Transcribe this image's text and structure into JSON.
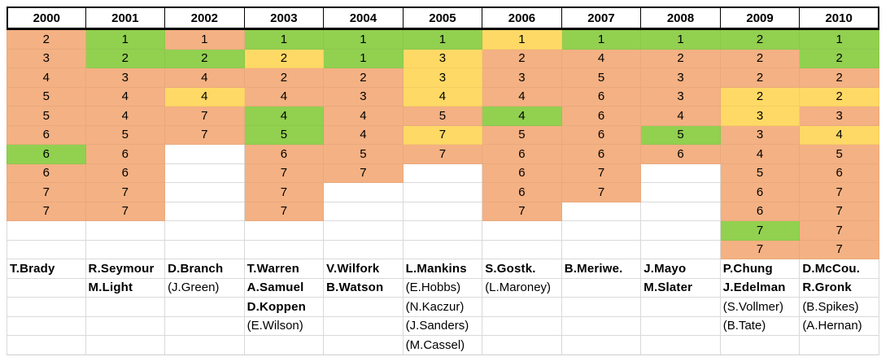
{
  "chart_data": {
    "type": "table",
    "title": "",
    "years": [
      "2000",
      "2001",
      "2002",
      "2003",
      "2004",
      "2005",
      "2006",
      "2007",
      "2008",
      "2009",
      "2010"
    ],
    "num_pick_rows": 12,
    "num_name_rows": 5,
    "colors": {
      "orange": "#F4B183",
      "green": "#92D050",
      "yellow": "#FFD966",
      "gridline": "#d9d9d9",
      "header_border": "#000000"
    },
    "color_codes": {
      "o": "orange",
      "g": "green",
      "y": "yellow"
    },
    "columns": [
      {
        "year": "2000",
        "picks": [
          [
            "2",
            "o"
          ],
          [
            "3",
            "o"
          ],
          [
            "4",
            "o"
          ],
          [
            "5",
            "o"
          ],
          [
            "5",
            "o"
          ],
          [
            "6",
            "o"
          ],
          [
            "6",
            "g"
          ],
          [
            "6",
            "o"
          ],
          [
            "7",
            "o"
          ],
          [
            "7",
            "o"
          ],
          null,
          null
        ],
        "names": [
          [
            "T.Brady",
            true
          ]
        ]
      },
      {
        "year": "2001",
        "picks": [
          [
            "1",
            "g"
          ],
          [
            "2",
            "g"
          ],
          [
            "3",
            "o"
          ],
          [
            "4",
            "o"
          ],
          [
            "4",
            "o"
          ],
          [
            "5",
            "o"
          ],
          [
            "6",
            "o"
          ],
          [
            "6",
            "o"
          ],
          [
            "7",
            "o"
          ],
          [
            "7",
            "o"
          ],
          null,
          null
        ],
        "names": [
          [
            "R.Seymour",
            true
          ],
          [
            "M.Light",
            true
          ]
        ]
      },
      {
        "year": "2002",
        "picks": [
          [
            "1",
            "o"
          ],
          [
            "2",
            "g"
          ],
          [
            "4",
            "o"
          ],
          [
            "4",
            "y"
          ],
          [
            "7",
            "o"
          ],
          [
            "7",
            "o"
          ],
          null,
          null,
          null,
          null,
          null,
          null
        ],
        "names": [
          [
            "D.Branch",
            true
          ],
          [
            "(J.Green)",
            false
          ]
        ]
      },
      {
        "year": "2003",
        "picks": [
          [
            "1",
            "g"
          ],
          [
            "2",
            "y"
          ],
          [
            "2",
            "o"
          ],
          [
            "4",
            "o"
          ],
          [
            "4",
            "g"
          ],
          [
            "5",
            "g"
          ],
          [
            "6",
            "o"
          ],
          [
            "7",
            "o"
          ],
          [
            "7",
            "o"
          ],
          [
            "7",
            "o"
          ],
          null,
          null
        ],
        "names": [
          [
            "T.Warren",
            true
          ],
          [
            "A.Samuel",
            true
          ],
          [
            "D.Koppen",
            true
          ],
          [
            "(E.Wilson)",
            false
          ]
        ]
      },
      {
        "year": "2004",
        "picks": [
          [
            "1",
            "g"
          ],
          [
            "1",
            "g"
          ],
          [
            "2",
            "o"
          ],
          [
            "3",
            "o"
          ],
          [
            "4",
            "o"
          ],
          [
            "4",
            "o"
          ],
          [
            "5",
            "o"
          ],
          [
            "7",
            "o"
          ],
          null,
          null,
          null,
          null
        ],
        "names": [
          [
            "V.Wilfork",
            true
          ],
          [
            "B.Watson",
            true
          ]
        ]
      },
      {
        "year": "2005",
        "picks": [
          [
            "1",
            "g"
          ],
          [
            "3",
            "y"
          ],
          [
            "3",
            "y"
          ],
          [
            "4",
            "y"
          ],
          [
            "5",
            "o"
          ],
          [
            "7",
            "y"
          ],
          [
            "7",
            "o"
          ],
          null,
          null,
          null,
          null,
          null
        ],
        "names": [
          [
            "L.Mankins",
            true
          ],
          [
            "(E.Hobbs)",
            false
          ],
          [
            "(N.Kaczur)",
            false
          ],
          [
            "(J.Sanders)",
            false
          ],
          [
            "(M.Cassel)",
            false
          ]
        ]
      },
      {
        "year": "2006",
        "picks": [
          [
            "1",
            "y"
          ],
          [
            "2",
            "o"
          ],
          [
            "3",
            "o"
          ],
          [
            "4",
            "o"
          ],
          [
            "4",
            "g"
          ],
          [
            "5",
            "o"
          ],
          [
            "6",
            "o"
          ],
          [
            "6",
            "o"
          ],
          [
            "6",
            "o"
          ],
          [
            "7",
            "o"
          ],
          null,
          null
        ],
        "names": [
          [
            "S.Gostk.",
            true
          ],
          [
            "(L.Maroney)",
            false
          ]
        ]
      },
      {
        "year": "2007",
        "picks": [
          [
            "1",
            "g"
          ],
          [
            "4",
            "o"
          ],
          [
            "5",
            "o"
          ],
          [
            "6",
            "o"
          ],
          [
            "6",
            "o"
          ],
          [
            "6",
            "o"
          ],
          [
            "6",
            "o"
          ],
          [
            "7",
            "o"
          ],
          [
            "7",
            "o"
          ],
          null,
          null,
          null
        ],
        "names": [
          [
            "B.Meriwe.",
            true
          ]
        ]
      },
      {
        "year": "2008",
        "picks": [
          [
            "1",
            "g"
          ],
          [
            "2",
            "o"
          ],
          [
            "3",
            "o"
          ],
          [
            "3",
            "o"
          ],
          [
            "4",
            "o"
          ],
          [
            "5",
            "g"
          ],
          [
            "6",
            "o"
          ],
          null,
          null,
          null,
          null,
          null
        ],
        "names": [
          [
            "J.Mayo",
            true
          ],
          [
            "M.Slater",
            true
          ]
        ]
      },
      {
        "year": "2009",
        "picks": [
          [
            "2",
            "g"
          ],
          [
            "2",
            "o"
          ],
          [
            "2",
            "o"
          ],
          [
            "2",
            "y"
          ],
          [
            "3",
            "y"
          ],
          [
            "3",
            "o"
          ],
          [
            "4",
            "o"
          ],
          [
            "5",
            "o"
          ],
          [
            "6",
            "o"
          ],
          [
            "6",
            "o"
          ],
          [
            "7",
            "g"
          ],
          [
            "7",
            "o"
          ]
        ],
        "names": [
          [
            "P.Chung",
            true
          ],
          [
            "J.Edelman",
            true
          ],
          [
            "(S.Vollmer)",
            false
          ],
          [
            "(B.Tate)",
            false
          ]
        ]
      },
      {
        "year": "2010",
        "picks": [
          [
            "1",
            "g"
          ],
          [
            "2",
            "g"
          ],
          [
            "2",
            "o"
          ],
          [
            "2",
            "y"
          ],
          [
            "3",
            "o"
          ],
          [
            "4",
            "y"
          ],
          [
            "5",
            "o"
          ],
          [
            "6",
            "o"
          ],
          [
            "7",
            "o"
          ],
          [
            "7",
            "o"
          ],
          [
            "7",
            "o"
          ],
          [
            "7",
            "o"
          ]
        ],
        "names": [
          [
            "D.McCou.",
            true
          ],
          [
            "R.Gronk",
            true
          ],
          [
            "(B.Spikes)",
            false
          ],
          [
            "(A.Hernan)",
            false
          ]
        ]
      }
    ]
  }
}
